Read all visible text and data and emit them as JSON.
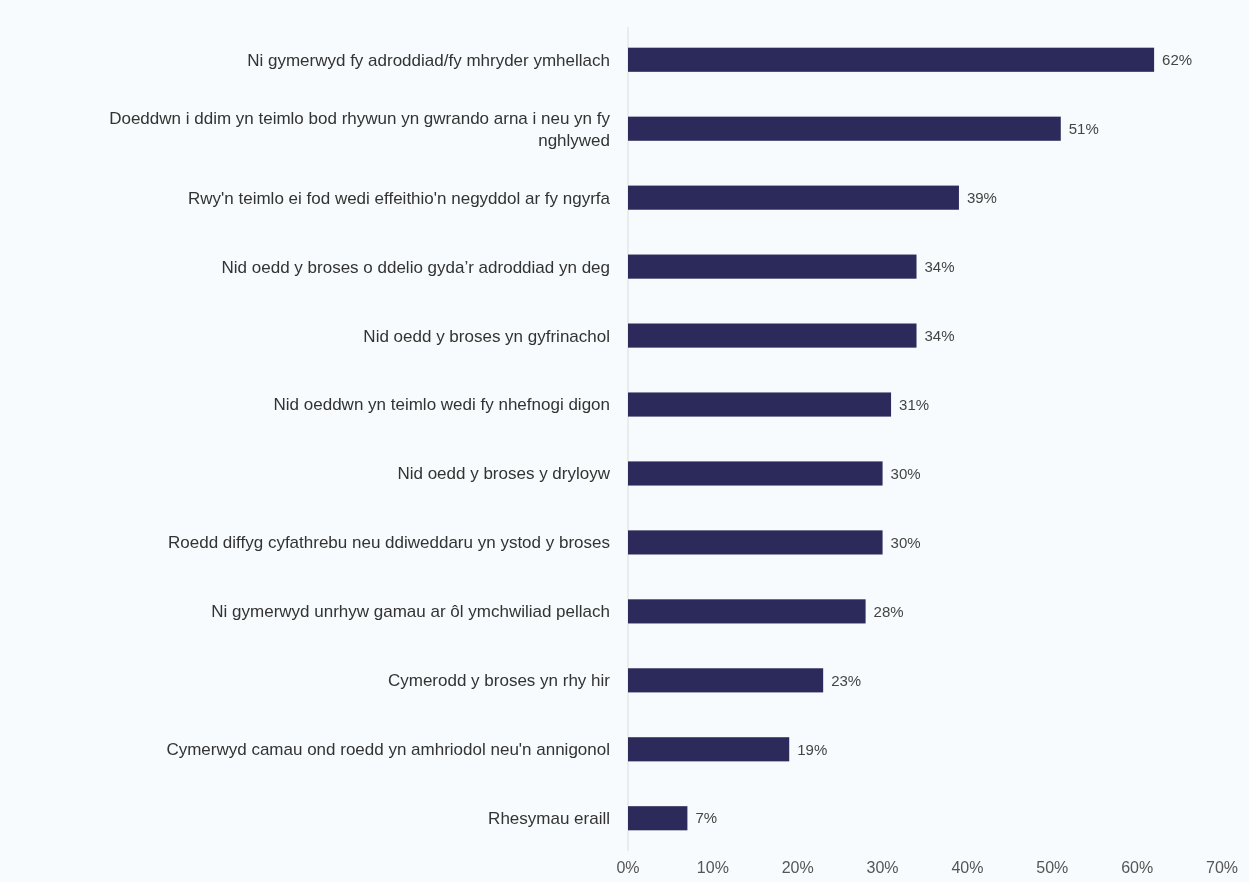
{
  "chart_data": {
    "type": "bar",
    "orientation": "horizontal",
    "categories": [
      "Ni gymerwyd fy adroddiad/fy mhryder ymhellach",
      "Doeddwn i ddim yn teimlo bod rhywun yn gwrando arna i neu yn fy nghlywed",
      "Rwy'n teimlo ei fod wedi effeithio'n negyddol ar fy ngyrfa",
      "Nid oedd y broses o ddelio gyda’r adroddiad yn deg",
      "Nid oedd y broses yn gyfrinachol",
      "Nid oeddwn yn teimlo wedi fy nhefnogi digon",
      "Nid oedd y broses y dryloyw",
      "Roedd diffyg cyfathrebu neu ddiweddaru yn ystod y broses",
      "Ni gymerwyd unrhyw gamau ar ôl ymchwiliad pellach",
      "Cymerodd y broses yn rhy hir",
      "Cymerwyd camau ond roedd yn amhriodol neu'n annigonol",
      "Rhesymau eraill"
    ],
    "values": [
      62,
      51,
      39,
      34,
      34,
      31,
      30,
      30,
      28,
      23,
      19,
      7
    ],
    "value_labels": [
      "62%",
      "51%",
      "39%",
      "34%",
      "34%",
      "31%",
      "30%",
      "30%",
      "28%",
      "23%",
      "19%",
      "7%"
    ],
    "color": "#2b2a5a",
    "xlim": [
      0,
      70
    ],
    "xticks": [
      {
        "value": 0,
        "label": "0%"
      },
      {
        "value": 10,
        "label": "10%"
      },
      {
        "value": 20,
        "label": "20%"
      },
      {
        "value": 30,
        "label": "30%"
      },
      {
        "value": 40,
        "label": "40%"
      },
      {
        "value": 50,
        "label": "50%"
      },
      {
        "value": 60,
        "label": "60%"
      },
      {
        "value": 70,
        "label": "70%"
      }
    ],
    "grid": false
  }
}
